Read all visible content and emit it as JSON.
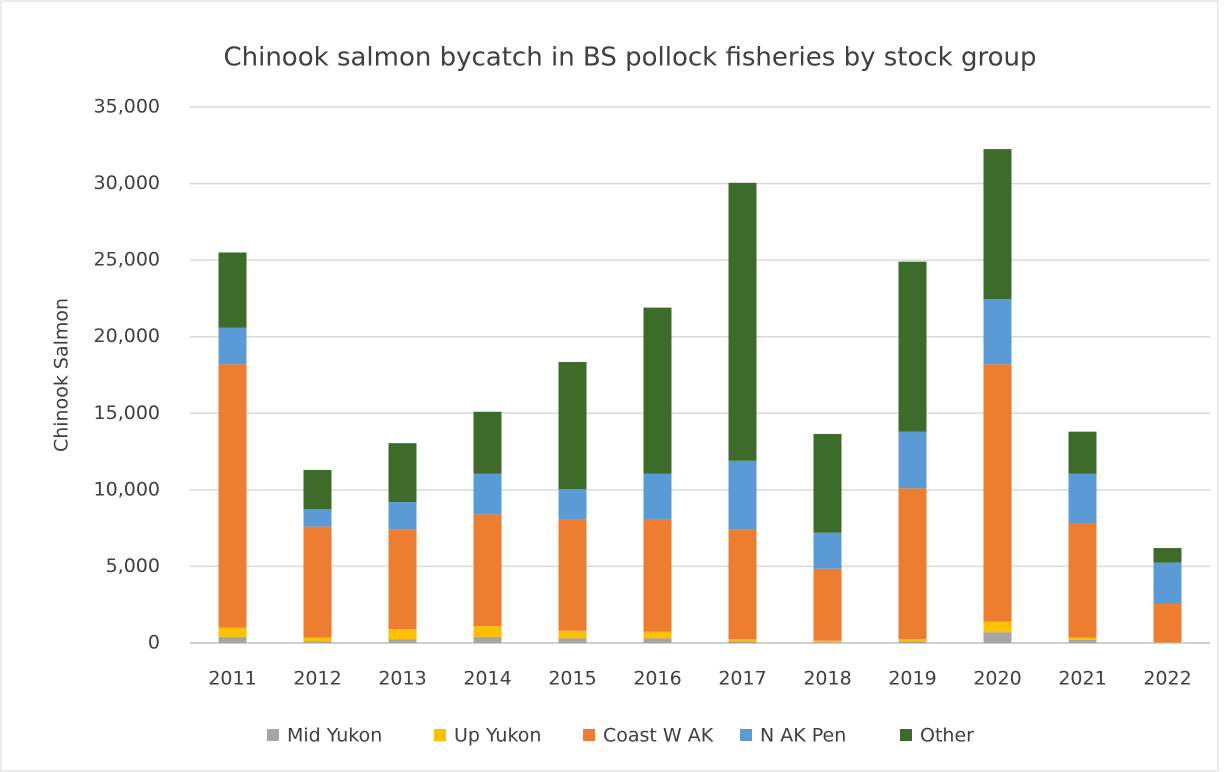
{
  "chart_data": {
    "type": "bar",
    "stacked": true,
    "title": "Chinook salmon bycatch in BS pollock fisheries by stock group",
    "y_label": "Chinook Salmon",
    "categories": [
      "2011",
      "2012",
      "2013",
      "2014",
      "2015",
      "2016",
      "2017",
      "2018",
      "2019",
      "2020",
      "2021",
      "2022"
    ],
    "series": [
      {
        "name": "Mid Yukon",
        "color": "#a5a5a5",
        "values": [
          400,
          100,
          250,
          400,
          300,
          300,
          100,
          50,
          100,
          700,
          200,
          30
        ]
      },
      {
        "name": "Up Yukon",
        "color": "#ffc000",
        "values": [
          600,
          250,
          650,
          700,
          500,
          450,
          150,
          100,
          150,
          700,
          150,
          20
        ]
      },
      {
        "name": "Coast W AK",
        "color": "#ed7d31",
        "values": [
          17200,
          7250,
          6500,
          7300,
          7250,
          7350,
          7150,
          4700,
          9850,
          16800,
          7450,
          2500
        ]
      },
      {
        "name": "N AK Pen",
        "color": "#5b9bd5",
        "values": [
          2400,
          1150,
          1800,
          2650,
          2000,
          2950,
          4500,
          2350,
          3700,
          4250,
          3250,
          2700
        ]
      },
      {
        "name": "Other",
        "color": "#3d6b2a",
        "values": [
          4900,
          2550,
          3850,
          4050,
          8300,
          10850,
          18150,
          6450,
          11100,
          9800,
          2750,
          950
        ]
      }
    ],
    "ylim": [
      0,
      35000
    ],
    "yticks": [
      0,
      {
        "value": 5000,
        "label": "5,000"
      },
      {
        "value": 10000,
        "label": "10,000"
      },
      {
        "value": 15000,
        "label": "15,000"
      },
      {
        "value": 20000,
        "label": "20,000"
      },
      {
        "value": 25000,
        "label": "25,000"
      },
      {
        "value": 30000,
        "label": "30,000"
      },
      {
        "value": 35000,
        "label": "35,000"
      }
    ],
    "grid": true,
    "legend": "bottom"
  }
}
